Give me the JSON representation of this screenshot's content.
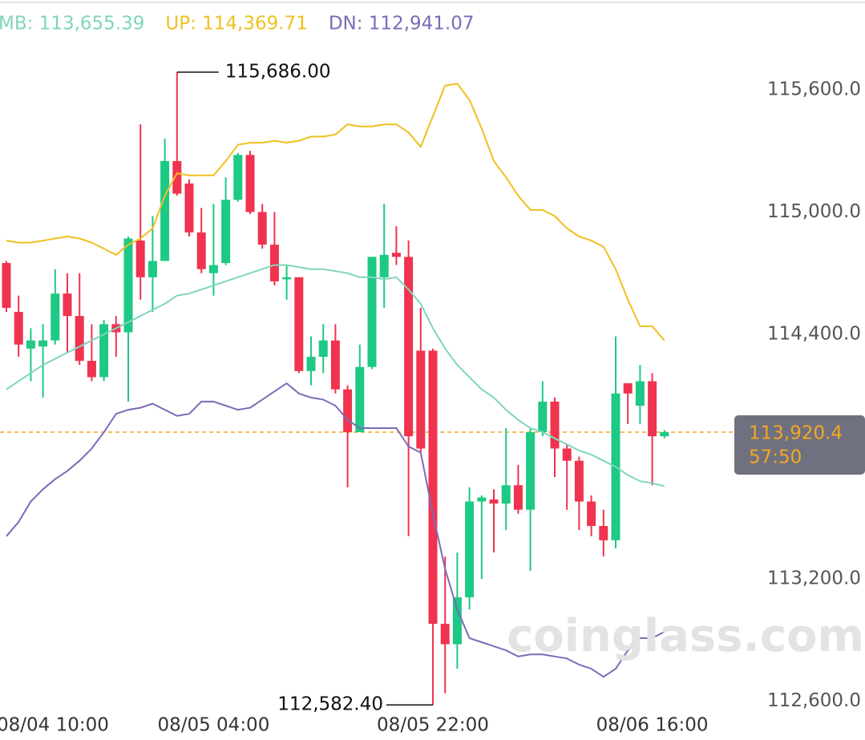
{
  "chart_data": {
    "type": "candlestick",
    "categories": [
      "08/04 10:00",
      null,
      null,
      null,
      null,
      null,
      null,
      null,
      null,
      null,
      null,
      null,
      null,
      null,
      null,
      null,
      null,
      "08/05 04:00",
      null,
      null,
      null,
      null,
      null,
      null,
      null,
      null,
      null,
      null,
      null,
      null,
      null,
      null,
      null,
      null,
      null,
      "08/05 22:00",
      null,
      null,
      null,
      null,
      null,
      null,
      null,
      null,
      null,
      null,
      null,
      null,
      null,
      null,
      null,
      null,
      null,
      "08/06 16:00",
      null
    ],
    "open": [
      114750,
      114510,
      114330,
      114340,
      114370,
      114600,
      114490,
      114270,
      114190,
      114450,
      114410,
      114860,
      114680,
      114760,
      115250,
      115140,
      114900,
      114700,
      114750,
      115060,
      115280,
      115000,
      114840,
      114670,
      114680,
      114220,
      114290,
      114370,
      114130,
      113920,
      114240,
      114680,
      114800,
      114780,
      114320,
      114320,
      112980,
      112880,
      113110,
      113580,
      113590,
      113570,
      113660,
      113540,
      113920,
      114070,
      113840,
      113780,
      113580,
      113460,
      113390,
      114160,
      114050,
      114170,
      113900
    ],
    "high": [
      114760,
      114590,
      114430,
      114450,
      114720,
      114700,
      114700,
      114450,
      114470,
      114490,
      114880,
      115430,
      114980,
      115360,
      115686,
      115160,
      115020,
      115040,
      115170,
      115290,
      115300,
      115040,
      115000,
      114740,
      114680,
      114390,
      114450,
      114450,
      114150,
      114350,
      114780,
      115040,
      114930,
      114860,
      114530,
      114330,
      113310,
      113330,
      113650,
      113610,
      113640,
      113940,
      113760,
      113940,
      114170,
      114090,
      113860,
      113800,
      113610,
      113540,
      114390,
      114160,
      114250,
      114210,
      113930
    ],
    "low": [
      114510,
      114290,
      114170,
      114090,
      114350,
      114310,
      114250,
      114170,
      114170,
      114290,
      114070,
      114570,
      114510,
      114760,
      115080,
      114880,
      114700,
      114590,
      114740,
      115050,
      114990,
      114820,
      114640,
      114570,
      114210,
      114150,
      114210,
      114110,
      113650,
      113920,
      114230,
      114530,
      114740,
      113410,
      113820,
      112582.4,
      112640,
      112760,
      113050,
      113200,
      113330,
      113440,
      113520,
      113240,
      113900,
      113700,
      113540,
      113440,
      113410,
      113310,
      113350,
      113960,
      113960,
      113660,
      113890
    ],
    "close": [
      114530,
      114350,
      114370,
      114370,
      114600,
      114490,
      114270,
      114190,
      114450,
      114410,
      114870,
      114680,
      114760,
      115250,
      115090,
      114900,
      114720,
      114740,
      115060,
      115280,
      115000,
      114840,
      114660,
      114680,
      114220,
      114290,
      114370,
      114130,
      113920,
      114240,
      114780,
      114790,
      114780,
      113900,
      113840,
      112980,
      112880,
      113110,
      113580,
      113600,
      113570,
      113660,
      113540,
      113920,
      114070,
      113840,
      113780,
      113580,
      113460,
      113390,
      114110,
      114110,
      114170,
      113900,
      113920.4
    ],
    "up_color": "#1dc984",
    "down_color": "#f0334f",
    "series": [
      {
        "name": "MB: 113,655.39",
        "color": "#7fd6bd",
        "values": [
          114130,
          114170,
          114210,
          114250,
          114280,
          114310,
          114340,
          114370,
          114400,
          114430,
          114460,
          114490,
          114520,
          114550,
          114590,
          114600,
          114620,
          114640,
          114660,
          114680,
          114700,
          114720,
          114740,
          114740,
          114730,
          114720,
          114720,
          114710,
          114700,
          114680,
          114680,
          114670,
          114680,
          114620,
          114550,
          114430,
          114330,
          114250,
          114190,
          114130,
          114090,
          114030,
          113980,
          113940,
          113920,
          113890,
          113860,
          113830,
          113810,
          113780,
          113750,
          113710,
          113680,
          113670,
          113655.39
        ]
      },
      {
        "name": "UP: 114,369.71",
        "color": "#f0c020",
        "values": [
          114860,
          114850,
          114850,
          114860,
          114870,
          114880,
          114870,
          114850,
          114820,
          114790,
          114840,
          114870,
          114920,
          115080,
          115190,
          115180,
          115180,
          115180,
          115250,
          115330,
          115340,
          115340,
          115350,
          115340,
          115350,
          115370,
          115370,
          115380,
          115430,
          115420,
          115420,
          115430,
          115430,
          115390,
          115320,
          115470,
          115620,
          115630,
          115550,
          115410,
          115250,
          115170,
          115080,
          115010,
          115010,
          114980,
          114920,
          114880,
          114860,
          114830,
          114720,
          114570,
          114440,
          114440,
          114369.71
        ]
      },
      {
        "name": "DN: 112,941.07",
        "color": "#7b6bb8",
        "values": [
          113410,
          113480,
          113580,
          113640,
          113690,
          113730,
          113780,
          113840,
          113920,
          114010,
          114030,
          114040,
          114060,
          114030,
          114000,
          114010,
          114070,
          114070,
          114050,
          114030,
          114040,
          114080,
          114120,
          114160,
          114110,
          114090,
          114080,
          114050,
          113980,
          113940,
          113940,
          113940,
          113940,
          113850,
          113820,
          113520,
          113250,
          113050,
          112910,
          112890,
          112870,
          112850,
          112820,
          112830,
          112830,
          112820,
          112810,
          112780,
          112760,
          112720,
          112760,
          112850,
          112910,
          112910,
          112941.07
        ]
      }
    ],
    "ylim": [
      112540,
      116040
    ],
    "yticks": [
      {
        "value": 115600,
        "label": "115,600.0"
      },
      {
        "value": 115000,
        "label": "115,000.0"
      },
      {
        "value": 114400,
        "label": "114,400.0"
      },
      {
        "value": 113200,
        "label": "113,200.0"
      },
      {
        "value": 112600,
        "label": "112,600.0"
      }
    ],
    "high_label": "115,686.00",
    "low_label": "112,582.40",
    "last_price": {
      "value": 113920.4,
      "label": "113,920.4",
      "color": "#f5a623"
    },
    "countdown": "57:50",
    "watermark": "coinglass.com"
  }
}
